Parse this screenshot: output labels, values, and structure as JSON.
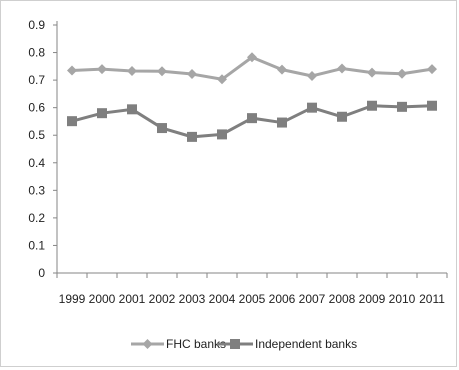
{
  "chart_data": {
    "type": "line",
    "title": "",
    "xlabel": "",
    "ylabel": "",
    "categories": [
      "1999",
      "2000",
      "2001",
      "2002",
      "2003",
      "2004",
      "2005",
      "2006",
      "2007",
      "2008",
      "2009",
      "2010",
      "2011"
    ],
    "y_ticks": [
      "0",
      "0.1",
      "0.2",
      "0.3",
      "0.4",
      "0.5",
      "0.6",
      "0.7",
      "0.8",
      "0.9"
    ],
    "ylim": [
      0,
      0.9
    ],
    "grid": false,
    "legend_position": "bottom",
    "series": [
      {
        "name": "FHC banks",
        "marker": "diamond",
        "color": "#a6a6a6",
        "values": [
          0.735,
          0.74,
          0.733,
          0.732,
          0.722,
          0.703,
          0.783,
          0.738,
          0.715,
          0.742,
          0.727,
          0.723,
          0.74
        ]
      },
      {
        "name": "Independent banks",
        "marker": "square",
        "color": "#7f7f7f",
        "values": [
          0.551,
          0.58,
          0.594,
          0.526,
          0.494,
          0.503,
          0.562,
          0.546,
          0.6,
          0.567,
          0.607,
          0.603,
          0.607
        ]
      }
    ]
  }
}
